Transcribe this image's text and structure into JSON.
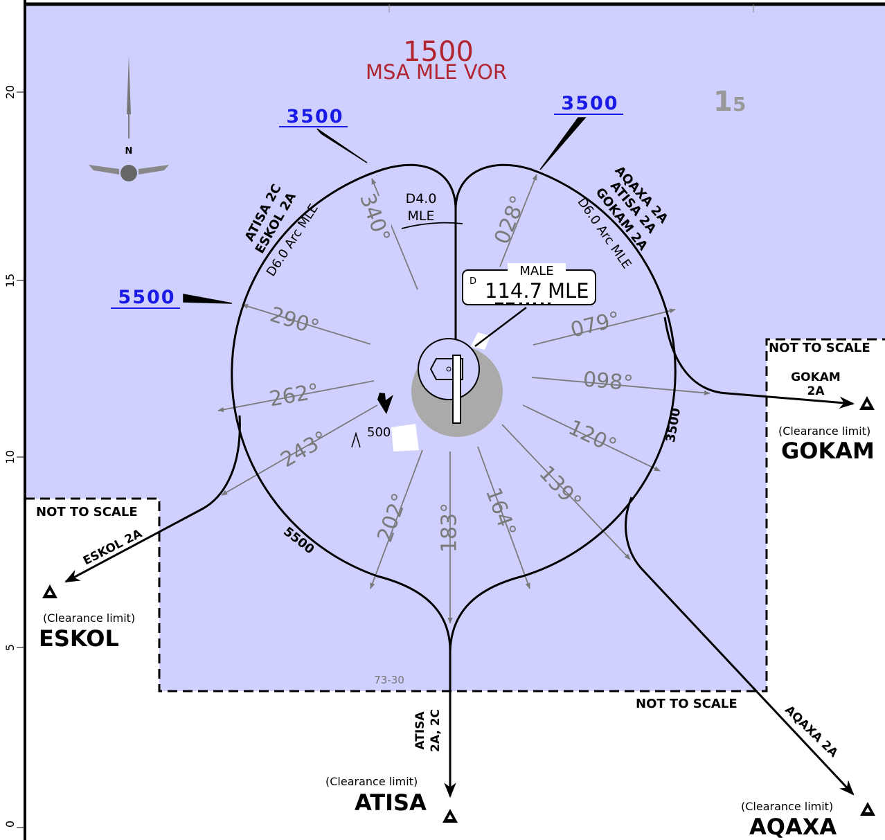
{
  "msa": {
    "altitude": "1500",
    "label": "MSA MLE VOR"
  },
  "chart_symbol": {
    "main": "1",
    "sub": "5"
  },
  "grid_labels": [
    "20",
    "15",
    "10",
    "5",
    "0"
  ],
  "north": "N",
  "altitudes": {
    "nw": "3500",
    "ne": "3500",
    "w": "5500",
    "arc_east": "3500",
    "arc_southwest": "5500"
  },
  "dme_fix": {
    "distance": "D4.0",
    "station": "MLE"
  },
  "navaid": {
    "name": "MALE",
    "prefix": "D",
    "frequency": "114.7",
    "ident": "MLE"
  },
  "arc_labels": {
    "west": [
      "ATISA 2C",
      "ESKOL 2A",
      "D6.0 Arc MLE"
    ],
    "east": [
      "AQAXA 2A",
      "ATISA 2A",
      "GOKAM 2A",
      "D6.0 Arc MLE"
    ]
  },
  "radials": [
    "340°",
    "028°",
    "290°",
    "079°",
    "262°",
    "098°",
    "243°",
    "120°",
    "202°",
    "183°",
    "164°",
    "139°"
  ],
  "spot_elevation": "500",
  "not_to_scale": [
    "NOT TO SCALE",
    "NOT TO SCALE",
    "NOT TO SCALE"
  ],
  "waypoints": {
    "gokam": {
      "route": [
        "GOKAM",
        "2A"
      ],
      "note": "(Clearance limit)",
      "name": "GOKAM"
    },
    "eskol": {
      "route": [
        "ESKOL 2A"
      ],
      "note": "(Clearance limit)",
      "name": "ESKOL"
    },
    "atisa": {
      "route": [
        "ATISA",
        "2A, 2C"
      ],
      "note": "(Clearance limit)",
      "name": "ATISA"
    },
    "aqaxa": {
      "route": [
        "AQAXA 2A"
      ],
      "note": "(Clearance limit)",
      "name": "AQAXA"
    }
  },
  "chart_ref": "73-30"
}
